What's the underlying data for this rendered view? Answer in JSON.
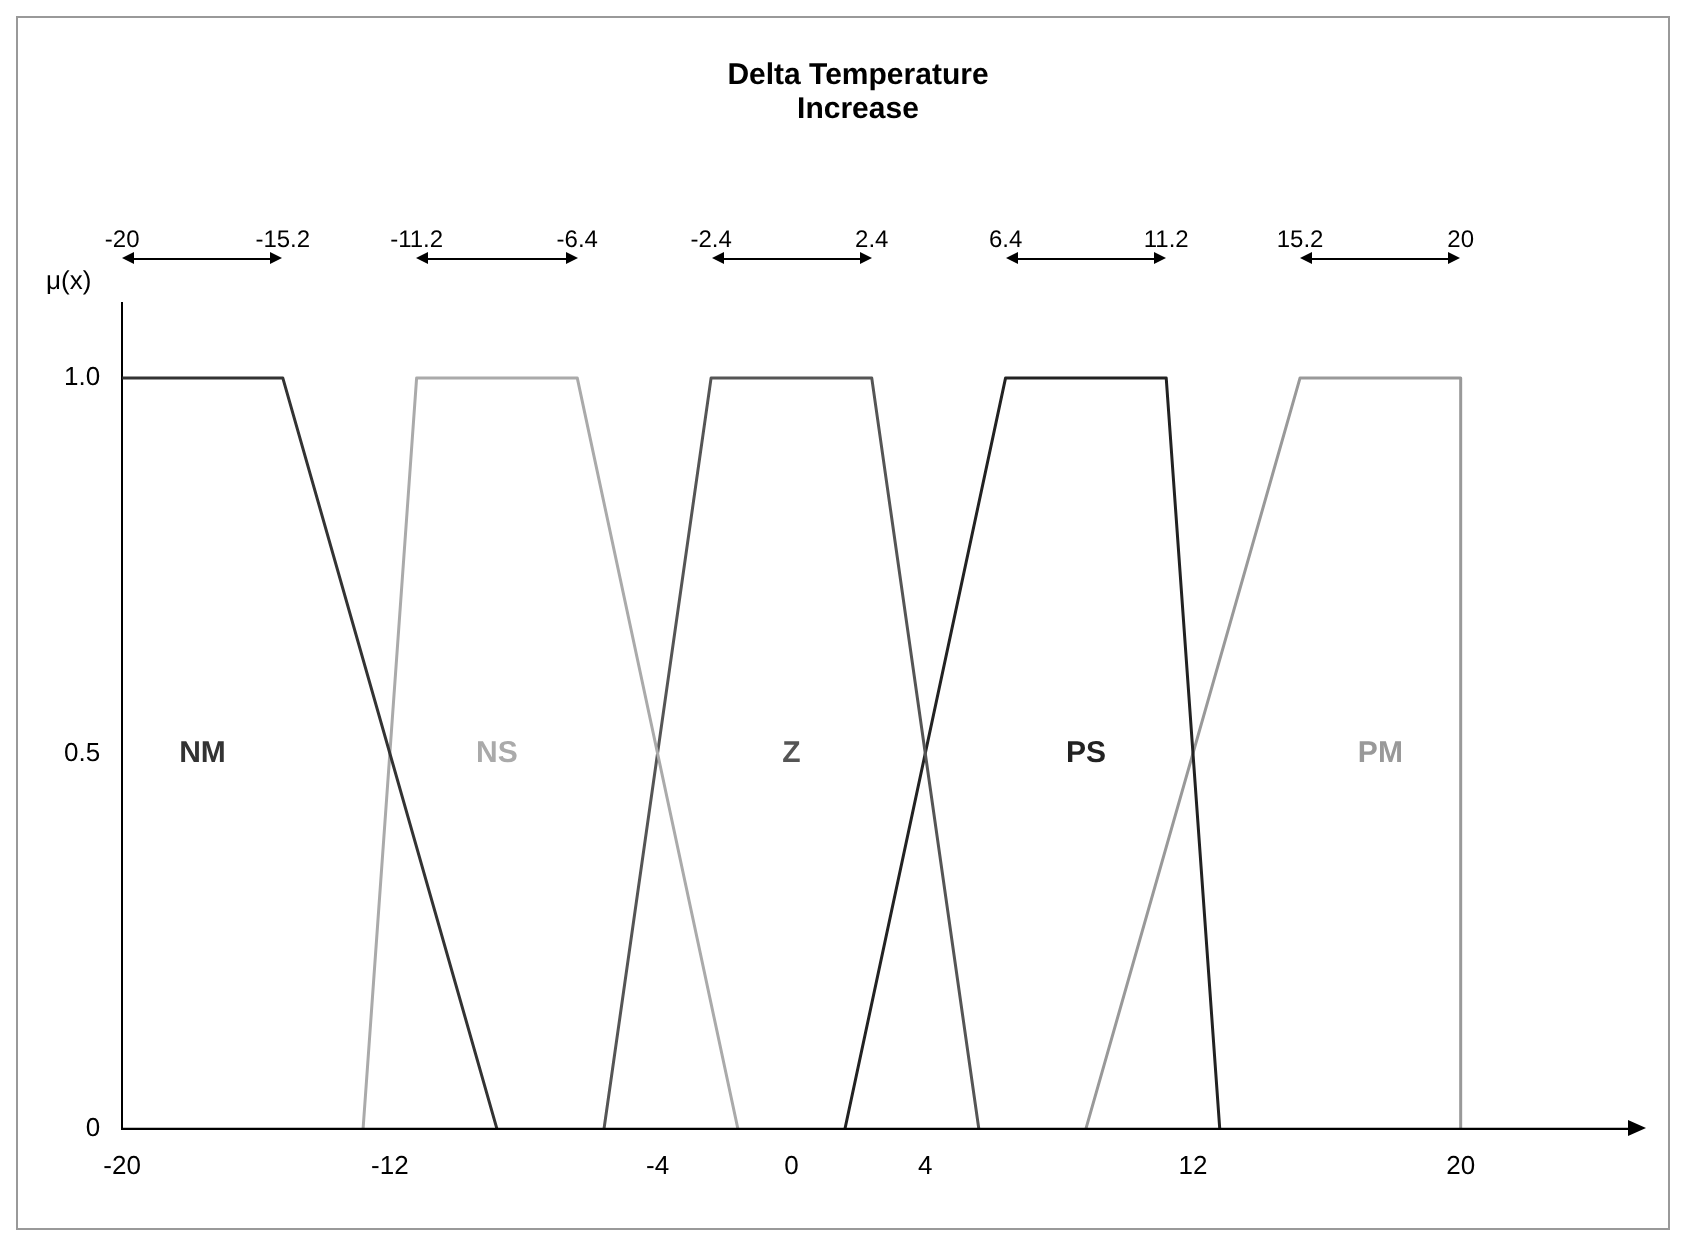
{
  "chart_data": {
    "type": "line",
    "title": "Delta Temperature Increase",
    "ylabel": "μ(x)",
    "xlim": [
      -20,
      25
    ],
    "xticks": [
      -20,
      -12,
      -4,
      0,
      4,
      12,
      20
    ],
    "ylim": [
      0,
      1.1
    ],
    "yticks": [
      {
        "value": 0,
        "label": "0"
      },
      {
        "value": 0.5,
        "label": "0.5"
      },
      {
        "value": 1,
        "label": "1.0"
      }
    ],
    "series": [
      {
        "name": "NM",
        "color": "#333333",
        "x": [
          -20,
          -15.2,
          -8.8
        ],
        "values": [
          1,
          1,
          0
        ]
      },
      {
        "name": "NS",
        "color": "#aaaaaa",
        "x": [
          -12.8,
          -11.2,
          -6.4,
          -1.6
        ],
        "values": [
          0,
          1,
          1,
          0
        ]
      },
      {
        "name": "Z",
        "color": "#555555",
        "x": [
          -5.6,
          -2.4,
          2.4,
          5.6
        ],
        "values": [
          0,
          1,
          1,
          0
        ]
      },
      {
        "name": "PS",
        "color": "#222222",
        "x": [
          1.6,
          6.4,
          11.2,
          12.8
        ],
        "values": [
          0,
          1,
          1,
          0
        ]
      },
      {
        "name": "PM",
        "color": "#999999",
        "x": [
          8.8,
          15.2,
          20,
          20
        ],
        "values": [
          0,
          1,
          1,
          0
        ]
      }
    ],
    "x2lim": [
      -20,
      25
    ],
    "x2ticks": [
      -20,
      -15.2,
      -11.2,
      -6.4,
      -2.4,
      2.4,
      6.4,
      11.2,
      15.2,
      20
    ],
    "grid": false,
    "legend": false,
    "marker": "none",
    "line_style": "solid"
  }
}
